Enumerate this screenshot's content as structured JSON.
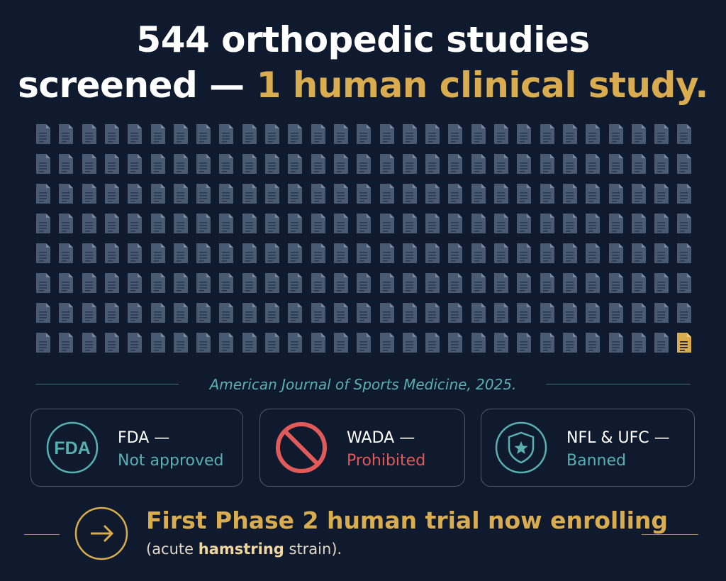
{
  "headline": {
    "line1": "544 orthopedic studies",
    "line2_white": "screened —",
    "line2_gold": "1 human clinical study."
  },
  "grid": {
    "total": 232,
    "highlighted": 1,
    "doc_icon": "document-icon",
    "normal_color": "#4a5a72",
    "highlight_color": "#d9ac4f"
  },
  "source": {
    "text": "American Journal of Sports Medicine, 2025."
  },
  "cards": [
    {
      "icon": "fda-badge-icon",
      "icon_text": "FDA",
      "title": "FDA —",
      "status": "Not approved",
      "status_color": "#58b0b0"
    },
    {
      "icon": "prohibited-icon",
      "title": "WADA —",
      "status": "Prohibited",
      "status_color": "#e05a5a"
    },
    {
      "icon": "shield-star-icon",
      "title": "NFL & UFC —",
      "status": "Banned",
      "status_color": "#58b0b0"
    }
  ],
  "trial": {
    "icon": "arrow-right-circle-icon",
    "main": "First Phase 2 human trial now enrolling",
    "sub_prefix": "(acute ",
    "sub_bold": "hamstring",
    "sub_suffix": " strain)."
  },
  "colors": {
    "background": "#0f1a2e",
    "gold": "#d9ac4f",
    "teal": "#58b0b0",
    "red": "#e05a5a",
    "card_border": "#4d5c73"
  }
}
